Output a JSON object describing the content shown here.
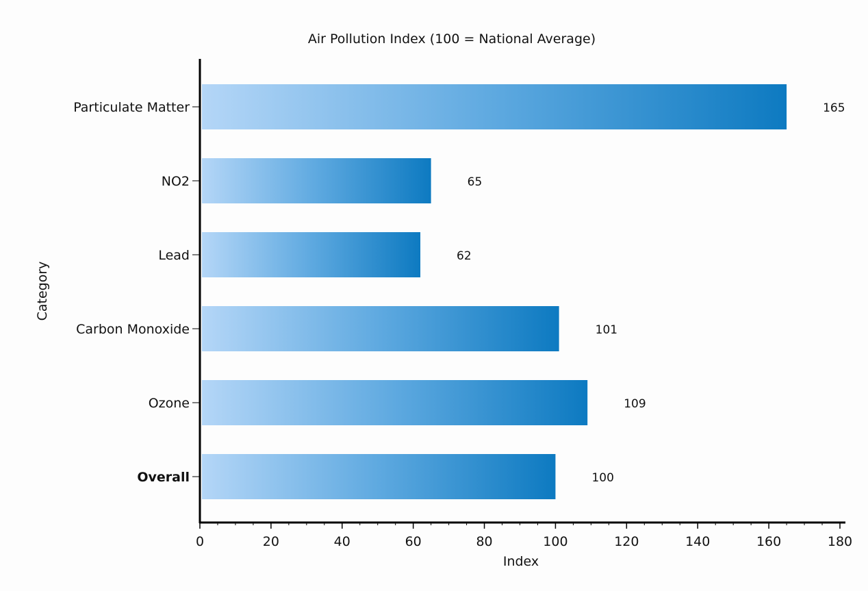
{
  "chart_data": {
    "type": "bar",
    "orientation": "horizontal",
    "title": "Air Pollution Index (100 = National Average)",
    "xlabel": "Index",
    "ylabel": "Category",
    "xlim": [
      0,
      180
    ],
    "x_ticks": [
      0,
      20,
      40,
      60,
      80,
      100,
      120,
      140,
      160,
      180
    ],
    "categories": [
      "Particulate Matter",
      "NO2",
      "Lead",
      "Carbon Monoxide",
      "Ozone",
      "Overall"
    ],
    "values": [
      165,
      65,
      62,
      101,
      109,
      100
    ],
    "data_labels": [
      "165",
      "65",
      "62",
      "101",
      "109",
      "100"
    ],
    "bold_categories": [
      "Overall"
    ],
    "grid": false,
    "legend": "none",
    "colors": {
      "bar_start": "#b4d6f7",
      "bar_mid": "#5ea9e0",
      "bar_end": "#0d7ac1",
      "axis": "#000000"
    }
  }
}
